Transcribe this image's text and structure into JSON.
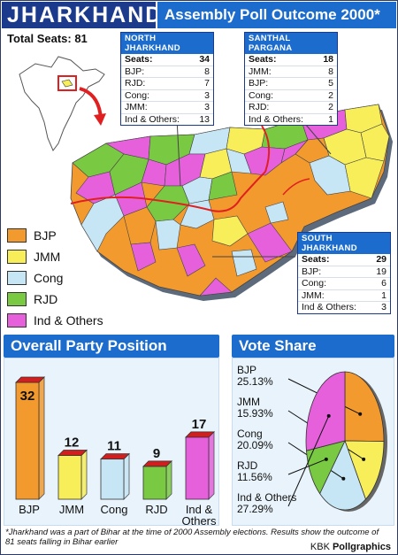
{
  "header": {
    "title": "JHARKHAND",
    "subtitle": "Assembly Poll Outcome 2000*"
  },
  "total_seats": "Total Seats: 81",
  "colors": {
    "BJP": "#f39a2e",
    "JMM": "#f7ee5a",
    "Cong": "#c6e6f6",
    "RJD": "#7ac943",
    "Ind & Others": "#e660dc",
    "header_dark": "#1b3a8c",
    "header_light": "#1b6ccc",
    "bar_top": "#d21e1e"
  },
  "legend": [
    {
      "label": "BJP",
      "color": "#f39a2e"
    },
    {
      "label": "JMM",
      "color": "#f7ee5a"
    },
    {
      "label": "Cong",
      "color": "#c6e6f6"
    },
    {
      "label": "RJD",
      "color": "#7ac943"
    },
    {
      "label": "Ind & Others",
      "color": "#e660dc"
    }
  ],
  "regions": {
    "north": {
      "title": "NORTH JHARKHAND",
      "rows": [
        {
          "label": "Seats:",
          "value": "34"
        },
        {
          "label": "BJP:",
          "value": "8"
        },
        {
          "label": "RJD:",
          "value": "7"
        },
        {
          "label": "Cong:",
          "value": "3"
        },
        {
          "label": "JMM:",
          "value": "3"
        },
        {
          "label": "Ind & Others:",
          "value": "13"
        }
      ]
    },
    "santhal": {
      "title": "SANTHAL PARGANA",
      "rows": [
        {
          "label": "Seats:",
          "value": "18"
        },
        {
          "label": "JMM:",
          "value": "8"
        },
        {
          "label": "BJP:",
          "value": "5"
        },
        {
          "label": "Cong:",
          "value": "2"
        },
        {
          "label": "RJD:",
          "value": "2"
        },
        {
          "label": "Ind & Others:",
          "value": "1"
        }
      ]
    },
    "south": {
      "title": "SOUTH JHARKHAND",
      "rows": [
        {
          "label": "Seats:",
          "value": "29"
        },
        {
          "label": "BJP:",
          "value": "19"
        },
        {
          "label": "Cong:",
          "value": "6"
        },
        {
          "label": "JMM:",
          "value": "1"
        },
        {
          "label": "Ind & Others:",
          "value": "3"
        }
      ]
    }
  },
  "chart_data": [
    {
      "type": "bar",
      "title": "Overall Party  Position",
      "categories": [
        "BJP",
        "JMM",
        "Cong",
        "RJD",
        "Ind & Others"
      ],
      "values": [
        32,
        12,
        11,
        9,
        17
      ],
      "colors": [
        "#f39a2e",
        "#f7ee5a",
        "#c6e6f6",
        "#7ac943",
        "#e660dc"
      ],
      "ylim": [
        0,
        32
      ]
    },
    {
      "type": "pie",
      "title": "Vote Share",
      "categories": [
        "BJP",
        "JMM",
        "Cong",
        "RJD",
        "Ind & Others"
      ],
      "values": [
        25.13,
        15.93,
        20.09,
        11.56,
        27.29
      ],
      "value_labels": [
        "25.13%",
        "15.93%",
        "20.09%",
        "11.56%",
        "27.29%"
      ],
      "colors": [
        "#f39a2e",
        "#f7ee5a",
        "#c6e6f6",
        "#7ac943",
        "#e660dc"
      ]
    }
  ],
  "footnote": "*Jharkhand was a part of Bihar at the time of 2000 Assembly elections. Results show the outcome of 81 seats falling in Bihar earlier",
  "credit_prefix": "KBK ",
  "credit_bold": "Pollgraphics"
}
